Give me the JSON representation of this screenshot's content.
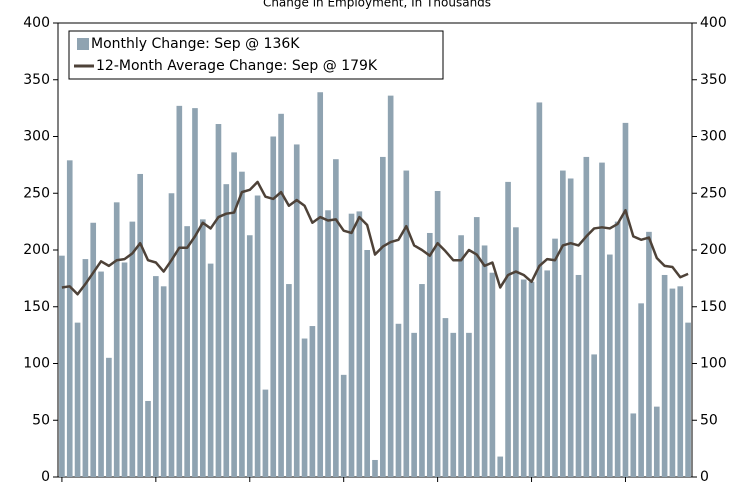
{
  "chart_data": {
    "type": "bar_line",
    "title": "Change in Employment, In Thousands",
    "series": [
      {
        "name": "Monthly Change: Sep @ 136K",
        "type": "bar",
        "color": "#8fa3b1",
        "values": [
          195,
          279,
          136,
          192,
          224,
          181,
          105,
          242,
          189,
          225,
          267,
          67,
          177,
          168,
          250,
          327,
          221,
          325,
          227,
          188,
          311,
          258,
          286,
          269,
          213,
          248,
          77,
          300,
          320,
          170,
          293,
          122,
          133,
          339,
          235,
          280,
          90,
          232,
          234,
          200,
          15,
          282,
          336,
          135,
          270,
          127,
          170,
          215,
          252,
          140,
          127,
          213,
          127,
          229,
          204,
          180,
          18,
          260,
          220,
          174,
          172,
          330,
          182,
          210,
          270,
          263,
          178,
          282,
          108,
          277,
          196,
          225,
          312,
          56,
          153,
          216,
          62,
          178,
          166,
          168,
          136
        ]
      },
      {
        "name": "12-Month Average Change: Sep @ 179K",
        "type": "line",
        "color": "#4e4238",
        "values": [
          167,
          168,
          161,
          170,
          180,
          190,
          186,
          191,
          192,
          197,
          206,
          191,
          189,
          181,
          191,
          202,
          202,
          212,
          224,
          219,
          229,
          232,
          233,
          251,
          253,
          260,
          247,
          245,
          251,
          239,
          244,
          239,
          224,
          229,
          226,
          227,
          217,
          215,
          229,
          222,
          196,
          203,
          207,
          209,
          221,
          204,
          200,
          195,
          206,
          199,
          191,
          191,
          200,
          196,
          186,
          189,
          167,
          178,
          181,
          178,
          172,
          186,
          192,
          191,
          204,
          206,
          204,
          212,
          219,
          220,
          219,
          223,
          235,
          212,
          209,
          211,
          193,
          186,
          185,
          176,
          179
        ]
      }
    ],
    "ylim": [
      0,
      400
    ],
    "yticks": [
      0,
      50,
      100,
      150,
      200,
      250,
      300,
      350,
      400
    ],
    "y2lim": [
      0,
      400
    ],
    "y2ticks": [
      0,
      50,
      100,
      150,
      200,
      250,
      300,
      350,
      400
    ],
    "legend": "top-left"
  }
}
